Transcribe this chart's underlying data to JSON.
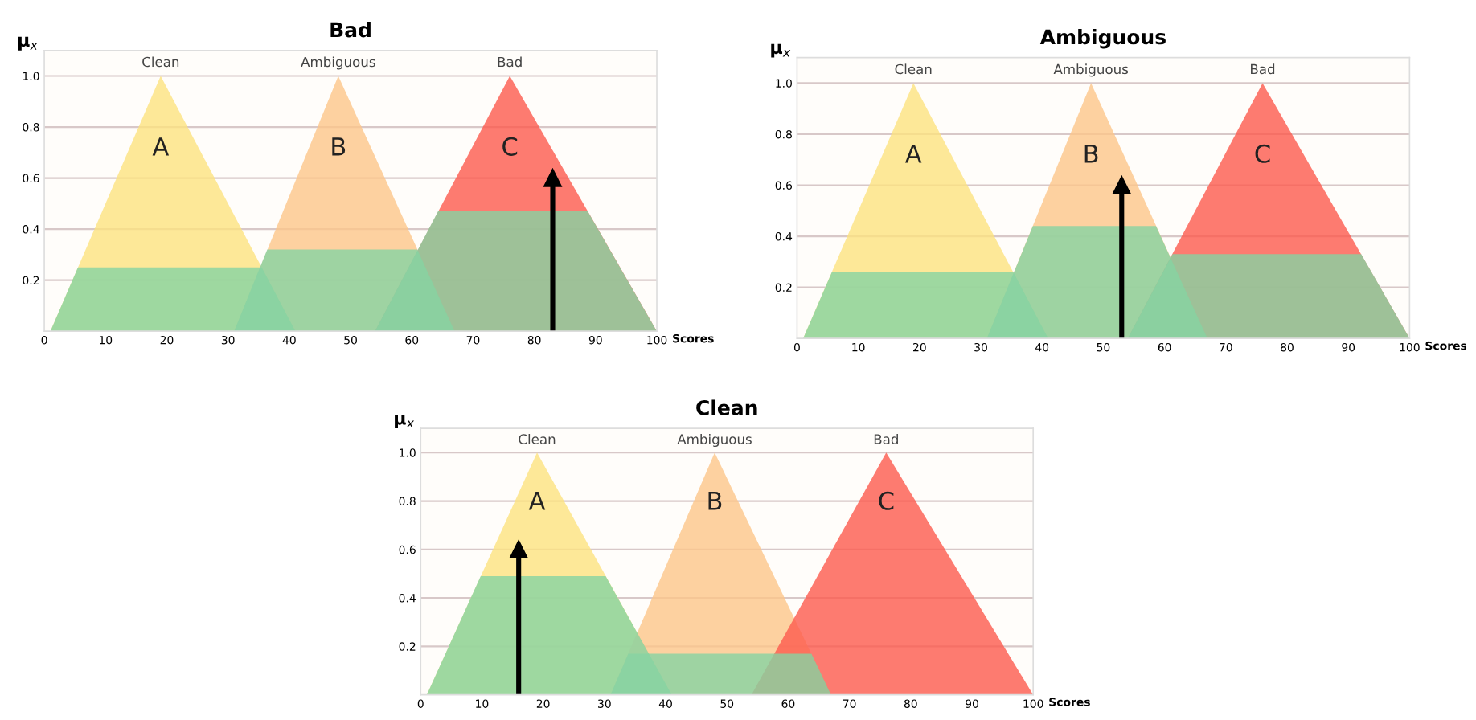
{
  "chart_data": [
    {
      "type": "area",
      "title": "Bad",
      "xlabel": "Scores",
      "ylabel": "μ$_{x}$",
      "xlim": [
        0,
        100
      ],
      "ylim": [
        0,
        1.1
      ],
      "xticks": [
        0,
        10,
        20,
        30,
        40,
        50,
        60,
        70,
        80,
        90,
        100
      ],
      "yticks": [
        {
          "value": 0.2,
          "label": "0.2"
        },
        {
          "value": 0.4,
          "label": "0.4"
        },
        {
          "value": 0.6,
          "label": "0.6"
        },
        {
          "value": 0.8,
          "label": "0.8"
        },
        {
          "value": 1,
          "label": "1.0"
        }
      ],
      "grid": "y",
      "legend": false,
      "series": [
        {
          "color": "#fde27f",
          "x": [
            1,
            19,
            41
          ],
          "values": [
            0,
            1,
            0
          ]
        },
        {
          "color": "#fcc58a",
          "x": [
            31,
            48,
            67
          ],
          "values": [
            0,
            1,
            0
          ]
        },
        {
          "color": "#fc5a4e",
          "x": [
            54,
            76,
            100
          ],
          "values": [
            0,
            1,
            0
          ]
        },
        {
          "color": "#86d3a2",
          "x": [
            1,
            5.5,
            35.5,
            41
          ],
          "values": [
            0,
            0.25,
            0.25,
            0
          ]
        },
        {
          "color": "#86d3a2",
          "x": [
            31,
            36.4,
            60.9,
            67
          ],
          "values": [
            0,
            0.32,
            0.32,
            0
          ]
        },
        {
          "color": "#86d3a2",
          "x": [
            54,
            64.3,
            88.7,
            100
          ],
          "values": [
            0,
            0.47,
            0.47,
            0
          ]
        },
        {
          "type": "line",
          "color": "#000000",
          "x": [
            83,
            83
          ],
          "values": [
            0,
            0.6
          ]
        }
      ],
      "annotations": [
        "Clean",
        "Ambiguous",
        "Bad",
        "A",
        "B",
        "C"
      ]
    },
    {
      "type": "area",
      "title": "Ambiguous",
      "xlabel": "Scores",
      "ylabel": "μ$_{x}$",
      "xlim": [
        0,
        100
      ],
      "ylim": [
        0,
        1.1
      ],
      "xticks": [
        0,
        10,
        20,
        30,
        40,
        50,
        60,
        70,
        80,
        90,
        100
      ],
      "yticks": [
        {
          "value": 0.2,
          "label": "0.2"
        },
        {
          "value": 0.4,
          "label": "0.4"
        },
        {
          "value": 0.6,
          "label": "0.6"
        },
        {
          "value": 0.8,
          "label": "0.8"
        },
        {
          "value": 1,
          "label": "1.0"
        }
      ],
      "grid": "y",
      "legend": false,
      "series": [
        {
          "color": "#fde27f",
          "x": [
            1,
            19,
            41
          ],
          "values": [
            0,
            1,
            0
          ]
        },
        {
          "color": "#fcc58a",
          "x": [
            31,
            48,
            67
          ],
          "values": [
            0,
            1,
            0
          ]
        },
        {
          "color": "#fc5a4e",
          "x": [
            54,
            76,
            100
          ],
          "values": [
            0,
            1,
            0
          ]
        },
        {
          "color": "#86d3a2",
          "x": [
            1,
            5.7,
            35.3,
            41
          ],
          "values": [
            0,
            0.26,
            0.26,
            0
          ]
        },
        {
          "color": "#86d3a2",
          "x": [
            31,
            38.5,
            58.6,
            67
          ],
          "values": [
            0,
            0.44,
            0.44,
            0
          ]
        },
        {
          "color": "#86d3a2",
          "x": [
            54,
            61.3,
            92.1,
            100
          ],
          "values": [
            0,
            0.33,
            0.33,
            0
          ]
        },
        {
          "type": "line",
          "color": "#000000",
          "x": [
            53,
            53
          ],
          "values": [
            0,
            0.6
          ]
        }
      ],
      "annotations": [
        "Clean",
        "Ambiguous",
        "Bad",
        "A",
        "B",
        "C"
      ]
    },
    {
      "type": "area",
      "title": "Clean",
      "xlabel": "Scores",
      "ylabel": "μ$_{x}$",
      "xlim": [
        0,
        100
      ],
      "ylim": [
        0,
        1.1
      ],
      "xticks": [
        0,
        10,
        20,
        30,
        40,
        50,
        60,
        70,
        80,
        90,
        100
      ],
      "yticks": [
        {
          "value": 0.2,
          "label": "0.2"
        },
        {
          "value": 0.4,
          "label": "0.4"
        },
        {
          "value": 0.6,
          "label": "0.6"
        },
        {
          "value": 0.8,
          "label": "0.8"
        },
        {
          "value": 1,
          "label": "1.0"
        }
      ],
      "grid": "y",
      "legend": false,
      "series": [
        {
          "color": "#fde27f",
          "x": [
            1,
            19,
            41
          ],
          "values": [
            0,
            1,
            0
          ]
        },
        {
          "color": "#fcc58a",
          "x": [
            31,
            48,
            67
          ],
          "values": [
            0,
            1,
            0
          ]
        },
        {
          "color": "#fc5a4e",
          "x": [
            54,
            76,
            100
          ],
          "values": [
            0,
            1,
            0
          ]
        },
        {
          "color": "#86d3a2",
          "x": [
            1,
            9.8,
            30.2,
            41
          ],
          "values": [
            0,
            0.49,
            0.49,
            0
          ]
        },
        {
          "color": "#86d3a2",
          "x": [
            31,
            33.9,
            63.8,
            67
          ],
          "values": [
            0,
            0.17,
            0.17,
            0
          ]
        },
        {
          "type": "line",
          "color": "#000000",
          "x": [
            16,
            16
          ],
          "values": [
            0,
            0.6
          ]
        }
      ],
      "annotations": [
        "Clean",
        "Ambiguous",
        "Bad",
        "A",
        "B",
        "C"
      ]
    }
  ]
}
